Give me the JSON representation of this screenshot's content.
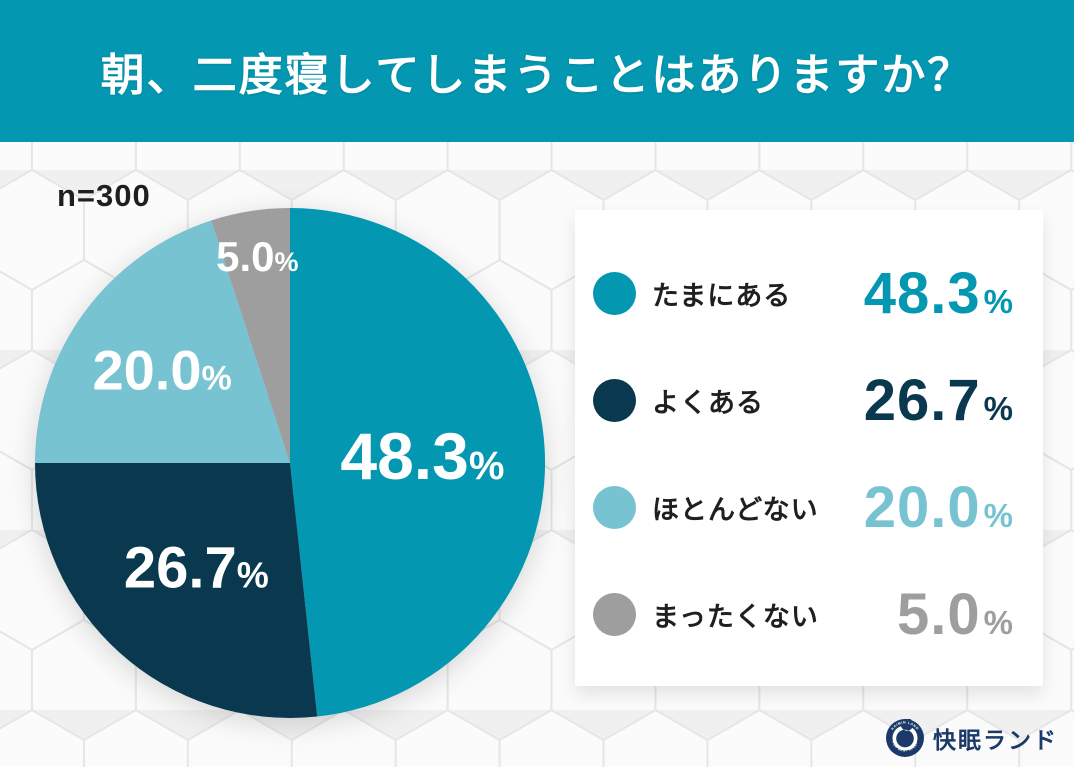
{
  "header": {
    "title": "朝、二度寝してしまうことはありますか？",
    "bg_color": "#0397B1",
    "text_color": "#FFFFFF"
  },
  "sample_label": "n=300",
  "chart_data": {
    "type": "pie",
    "title": "朝、二度寝してしまうことはありますか？",
    "sample_size": 300,
    "start_angle_deg": 0,
    "direction": "clockwise",
    "categories": [
      "たまにある",
      "よくある",
      "ほとんどない",
      "まったくない"
    ],
    "values": [
      48.3,
      26.7,
      20.0,
      5.0
    ],
    "value_labels": [
      "48.3",
      "26.7",
      "20.0",
      "5.0"
    ],
    "unit": "%",
    "colors": [
      "#0397B1",
      "#09384F",
      "#77C3D2",
      "#9E9E9E"
    ],
    "label_color": "#FFFFFF",
    "legend_position": "right"
  },
  "legend": {
    "items": [
      {
        "label": "たまにある",
        "value": "48.3",
        "unit": "%",
        "color": "#0397B1"
      },
      {
        "label": "よくある",
        "value": "26.7",
        "unit": "%",
        "color": "#09384F"
      },
      {
        "label": "ほとんどない",
        "value": "20.0",
        "unit": "%",
        "color": "#77C3D2"
      },
      {
        "label": "まったくない",
        "value": "5.0",
        "unit": "%",
        "color": "#9E9E9E"
      }
    ]
  },
  "footer": {
    "logo_text": "快眠ランド",
    "logo_badge_top": "KAIMIN LAND",
    "logo_badge_bottom": "FOR BEST SLEEP",
    "logo_color": "#1B3A69"
  }
}
